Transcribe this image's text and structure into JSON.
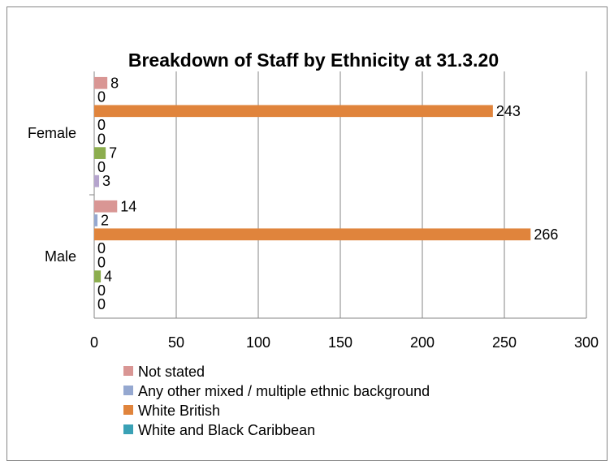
{
  "chart_data": {
    "type": "bar",
    "orientation": "horizontal",
    "title": "Breakdown of Staff by Ethnicity at 31.3.20",
    "categories": [
      "Male",
      "Female"
    ],
    "xlim": [
      0,
      300
    ],
    "xticks": [
      0,
      50,
      100,
      150,
      200,
      250,
      300
    ],
    "grid": true,
    "legend_position": "bottom",
    "series": [
      {
        "name": "Not stated",
        "color": "#d99694",
        "values": [
          14,
          8
        ]
      },
      {
        "name": "Any other mixed / multiple ethnic background",
        "color": "#95a8d0",
        "values": [
          2,
          0
        ]
      },
      {
        "name": "White British",
        "color": "#e0843c",
        "values": [
          266,
          243
        ]
      },
      {
        "name": "White and Black Caribbean",
        "color": "#3aa1b5",
        "values": [
          0,
          0
        ]
      },
      {
        "name": "",
        "color": "#b5b5b5",
        "values": [
          0,
          0
        ]
      },
      {
        "name": "",
        "color": "#8cad4e",
        "values": [
          4,
          7
        ]
      },
      {
        "name": "",
        "color": "#8c6fb0",
        "values": [
          0,
          0
        ]
      },
      {
        "name": "",
        "color": "#b5a4cd",
        "values": [
          0,
          3
        ]
      }
    ]
  }
}
